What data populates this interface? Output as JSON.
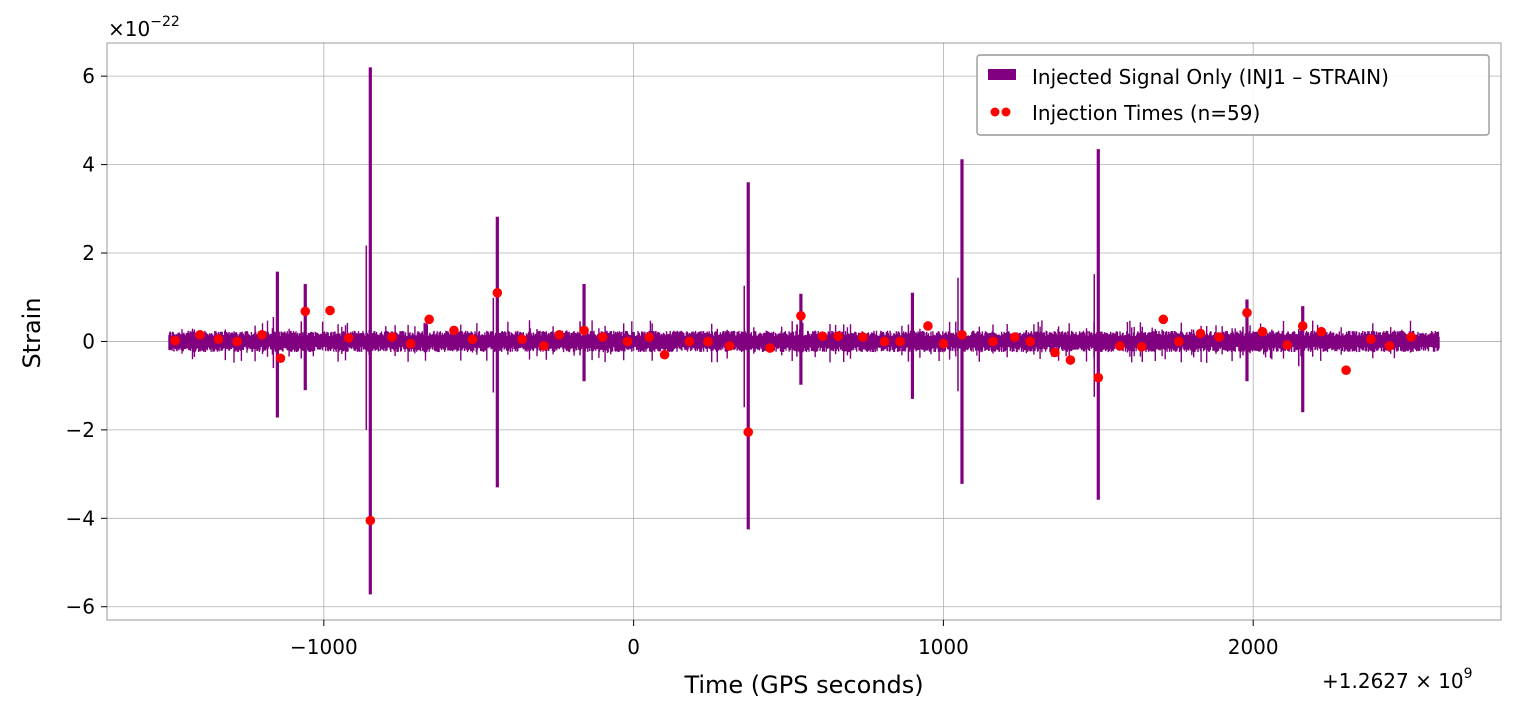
{
  "chart_data": {
    "type": "line",
    "xlabel": "Time (GPS seconds)",
    "ylabel": "Strain",
    "x_offset_label": "+1.2627 × 10",
    "x_offset_exp": "9",
    "y_scale_label": "×10",
    "y_scale_exp": "−22",
    "xlim": [
      -1700,
      2800
    ],
    "ylim": [
      -6.3,
      6.75
    ],
    "grid": true,
    "xticks": [
      {
        "value": -1000,
        "label": "−1000"
      },
      {
        "value": 0,
        "label": "0"
      },
      {
        "value": 1000,
        "label": "1000"
      },
      {
        "value": 2000,
        "label": "2000"
      }
    ],
    "yticks": [
      {
        "value": -6,
        "label": "−6"
      },
      {
        "value": -4,
        "label": "−4"
      },
      {
        "value": -2,
        "label": "−2"
      },
      {
        "value": 0,
        "label": "0"
      },
      {
        "value": 2,
        "label": "2"
      },
      {
        "value": 4,
        "label": "4"
      },
      {
        "value": 6,
        "label": "6"
      }
    ],
    "legend_position": "top-right",
    "series": [
      {
        "name": "Injected Signal Only (INJ1 – STRAIN)",
        "color": "#800080",
        "x_range": [
          -1500,
          2600
        ],
        "baseline_amplitude": 0.22,
        "spikes": [
          {
            "x": -1150,
            "max": 1.58,
            "min": -1.72
          },
          {
            "x": -1060,
            "max": 1.3,
            "min": -1.1
          },
          {
            "x": -850,
            "max": 6.2,
            "min": -5.72
          },
          {
            "x": -440,
            "max": 2.82,
            "min": -3.3
          },
          {
            "x": -160,
            "max": 1.3,
            "min": -0.9
          },
          {
            "x": 370,
            "max": 3.6,
            "min": -4.25
          },
          {
            "x": 540,
            "max": 1.08,
            "min": -0.98
          },
          {
            "x": 900,
            "max": 1.1,
            "min": -1.3
          },
          {
            "x": 1060,
            "max": 4.12,
            "min": -3.22
          },
          {
            "x": 1500,
            "max": 4.35,
            "min": -3.58
          },
          {
            "x": 1980,
            "max": 0.95,
            "min": -0.9
          },
          {
            "x": 2160,
            "max": 0.8,
            "min": -1.6
          }
        ]
      },
      {
        "name": "Injection Times (n=59)",
        "color": "#ff0000",
        "type": "scatter",
        "x": [
          -1480,
          -1400,
          -1340,
          -1280,
          -1200,
          -1140,
          -1060,
          -980,
          -920,
          -780,
          -720,
          -660,
          -580,
          -520,
          -440,
          -360,
          -290,
          -240,
          -160,
          -100,
          -20,
          50,
          100,
          180,
          240,
          310,
          440,
          540,
          610,
          660,
          740,
          810,
          860,
          950,
          1000,
          1060,
          1160,
          1230,
          1280,
          1360,
          1410,
          1500,
          1570,
          1640,
          1710,
          1760,
          1830,
          1890,
          1980,
          2030,
          2110,
          2160,
          2220,
          2300,
          2380,
          2440,
          2510
        ],
        "y": [
          0.02,
          0.15,
          0.05,
          0.0,
          0.15,
          -0.38,
          0.68,
          0.7,
          0.08,
          0.1,
          -0.05,
          0.5,
          0.25,
          0.05,
          1.1,
          0.05,
          -0.1,
          0.15,
          0.25,
          0.1,
          0.0,
          0.1,
          -0.3,
          0.0,
          0.0,
          -0.1,
          -0.15,
          0.58,
          0.12,
          0.12,
          0.1,
          0.0,
          0.0,
          0.35,
          -0.05,
          0.15,
          0.0,
          0.1,
          0.0,
          -0.25,
          -0.42,
          -0.82,
          -0.1,
          -0.12,
          0.5,
          0.0,
          0.18,
          0.1,
          0.65,
          0.22,
          -0.08,
          0.35,
          0.22,
          -0.65,
          0.05,
          -0.1,
          0.1
        ],
        "extra_points": [
          {
            "x": -850,
            "y": -4.05
          },
          {
            "x": 370,
            "y": -2.05
          }
        ]
      }
    ]
  }
}
